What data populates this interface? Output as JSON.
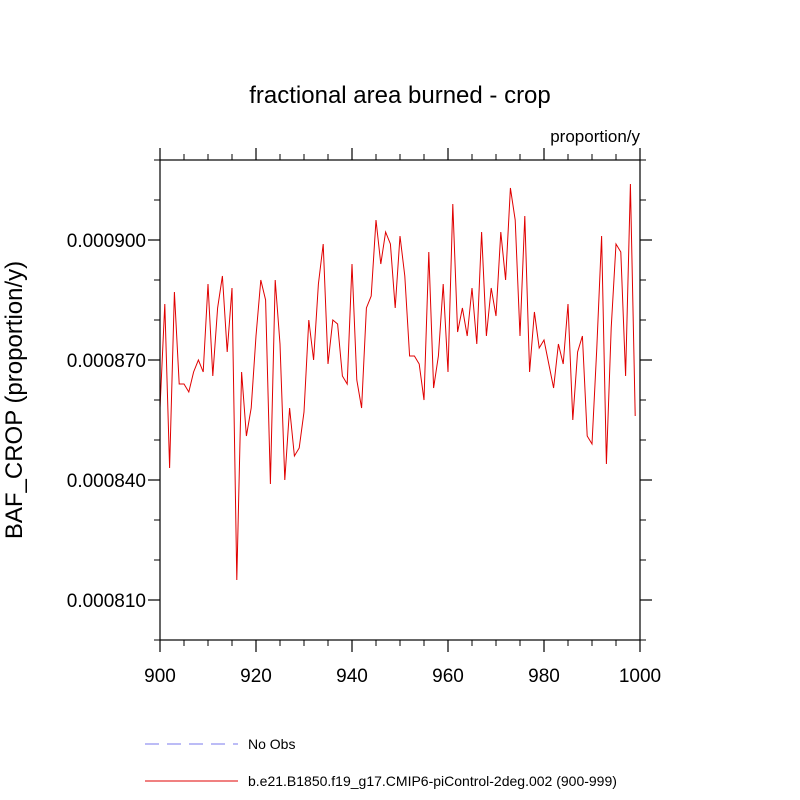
{
  "chart_data": {
    "type": "line",
    "title": "fractional area burned - crop",
    "units_label": "proportion/y",
    "xlabel": "",
    "ylabel": "BAF_CROP  (proportion/y)",
    "xlim": [
      900,
      1000
    ],
    "ylim": [
      0.0008,
      0.00092
    ],
    "x_ticks": [
      900,
      920,
      940,
      960,
      980,
      1000
    ],
    "x_tick_labels": [
      "900",
      "920",
      "940",
      "960",
      "980",
      "1000"
    ],
    "y_ticks": [
      0.00081,
      0.00084,
      0.00087,
      0.0009
    ],
    "y_tick_labels": [
      "0.000810",
      "0.000840",
      "0.000870",
      "0.000900"
    ],
    "series": [
      {
        "name": "b.e21.B1850.f19_g17.CMIP6-piControl-2deg.002 (900-999)",
        "color": "#e00000",
        "style": "solid",
        "x": [
          900,
          901,
          902,
          903,
          904,
          905,
          906,
          907,
          908,
          909,
          910,
          911,
          912,
          913,
          914,
          915,
          916,
          917,
          918,
          919,
          920,
          921,
          922,
          923,
          924,
          925,
          926,
          927,
          928,
          929,
          930,
          931,
          932,
          933,
          934,
          935,
          936,
          937,
          938,
          939,
          940,
          941,
          942,
          943,
          944,
          945,
          946,
          947,
          948,
          949,
          950,
          951,
          952,
          953,
          954,
          955,
          956,
          957,
          958,
          959,
          960,
          961,
          962,
          963,
          964,
          965,
          966,
          967,
          968,
          969,
          970,
          971,
          972,
          973,
          974,
          975,
          976,
          977,
          978,
          979,
          980,
          981,
          982,
          983,
          984,
          985,
          986,
          987,
          988,
          989,
          990,
          991,
          992,
          993,
          994,
          995,
          996,
          997,
          998,
          999
        ],
        "values": [
          0.000858,
          0.000884,
          0.000843,
          0.000887,
          0.000864,
          0.000864,
          0.000862,
          0.000867,
          0.00087,
          0.000867,
          0.000889,
          0.000866,
          0.000883,
          0.000891,
          0.000872,
          0.000888,
          0.000815,
          0.000867,
          0.000851,
          0.000858,
          0.000876,
          0.00089,
          0.000885,
          0.000839,
          0.00089,
          0.000874,
          0.00084,
          0.000858,
          0.000846,
          0.000848,
          0.000857,
          0.00088,
          0.00087,
          0.000889,
          0.000899,
          0.000869,
          0.00088,
          0.000879,
          0.000866,
          0.000864,
          0.000894,
          0.000865,
          0.000858,
          0.000883,
          0.000886,
          0.000905,
          0.000894,
          0.000902,
          0.000899,
          0.000883,
          0.000901,
          0.000891,
          0.000871,
          0.000871,
          0.000869,
          0.00086,
          0.000897,
          0.000863,
          0.000871,
          0.000889,
          0.000867,
          0.000909,
          0.000877,
          0.000883,
          0.000876,
          0.000888,
          0.000874,
          0.000902,
          0.000876,
          0.000888,
          0.000881,
          0.000902,
          0.00089,
          0.000913,
          0.000905,
          0.000876,
          0.000906,
          0.000867,
          0.000882,
          0.000873,
          0.000875,
          0.000869,
          0.000863,
          0.000874,
          0.000869,
          0.000884,
          0.000855,
          0.000872,
          0.000876,
          0.000851,
          0.000849,
          0.000873,
          0.000901,
          0.000844,
          0.000878,
          0.000899,
          0.000897,
          0.000866,
          0.000914,
          0.000856
        ]
      },
      {
        "name": "No Obs",
        "color": "#7a7aee",
        "style": "dashed",
        "x": [],
        "values": []
      }
    ],
    "legend_position": "bottom-left"
  }
}
